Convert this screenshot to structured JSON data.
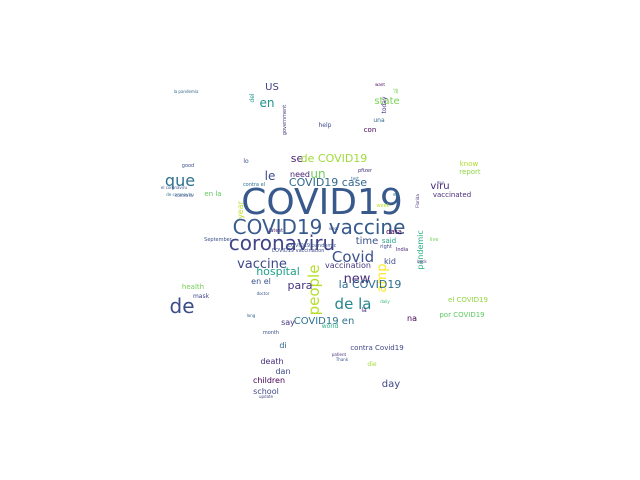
{
  "words": [
    {
      "text": "COVID19",
      "color": "#38598c"
    },
    {
      "text": "COVID19 vaccine",
      "color": "#375b8d"
    },
    {
      "text": "coronaviru",
      "color": "#414487"
    },
    {
      "text": "de",
      "color": "#3d4d8a"
    },
    {
      "text": "que",
      "color": "#2c728e"
    },
    {
      "text": "Covid",
      "color": "#3b528b"
    },
    {
      "text": "de la",
      "color": "#25858e"
    },
    {
      "text": "people",
      "color": "#b5de2b"
    },
    {
      "text": "amp",
      "color": "#fde725"
    },
    {
      "text": "new",
      "color": "#472d7b"
    },
    {
      "text": "vaccine",
      "color": "#3e4989"
    },
    {
      "text": "hospital",
      "color": "#1fa187"
    },
    {
      "text": "para",
      "color": "#46327e"
    },
    {
      "text": "la COVID19",
      "color": "#306a8e"
    },
    {
      "text": "COVID19 case",
      "color": "#31688e"
    },
    {
      "text": "se",
      "color": "#482576"
    },
    {
      "text": "de COVID19",
      "color": "#9fda3a"
    },
    {
      "text": "le",
      "color": "#3e4a89"
    },
    {
      "text": "un",
      "color": "#6ccd5a"
    },
    {
      "text": "en",
      "color": "#21918c"
    },
    {
      "text": "US",
      "color": "#414487"
    },
    {
      "text": "viru",
      "color": "#482878"
    },
    {
      "text": "time",
      "color": "#3b528b"
    },
    {
      "text": "state",
      "color": "#7ad151"
    },
    {
      "text": "COVID19 en",
      "color": "#2c728e"
    },
    {
      "text": "day",
      "color": "#3f4788"
    },
    {
      "text": "need",
      "color": "#482173"
    },
    {
      "text": "vaccination",
      "color": "#453781"
    },
    {
      "text": "en el",
      "color": "#3b528b"
    },
    {
      "text": "say",
      "color": "#46327e"
    },
    {
      "text": "death",
      "color": "#472c7a"
    },
    {
      "text": "children",
      "color": "#440154"
    },
    {
      "text": "school",
      "color": "#404688"
    },
    {
      "text": "dan",
      "color": "#3e4989"
    },
    {
      "text": "di",
      "color": "#31688e"
    },
    {
      "text": "kid",
      "color": "#3e4a89"
    },
    {
      "text": "na",
      "color": "#440154"
    },
    {
      "text": "pandemic",
      "color": "#27ad81"
    },
    {
      "text": "data",
      "color": "#440154"
    },
    {
      "text": "said",
      "color": "#20a386"
    },
    {
      "text": "contra Covid19",
      "color": "#3f4788"
    },
    {
      "text": "year",
      "color": "#b8de29"
    },
    {
      "text": "en la",
      "color": "#5ec962"
    },
    {
      "text": "vaccinated",
      "color": "#472d7b"
    },
    {
      "text": "report",
      "color": "#8fd744"
    },
    {
      "text": "know",
      "color": "#addc30"
    },
    {
      "text": "el COVID19",
      "color": "#90d743"
    },
    {
      "text": "por COVID19",
      "color": "#5ec962"
    },
    {
      "text": "health",
      "color": "#73d056"
    },
    {
      "text": "mask",
      "color": "#3f4788"
    },
    {
      "text": "world",
      "color": "#27ad81"
    },
    {
      "text": "la",
      "color": "#472d7b"
    },
    {
      "text": "help",
      "color": "#3e4a89"
    },
    {
      "text": "con",
      "color": "#440154"
    },
    {
      "text": "una",
      "color": "#31688e"
    },
    {
      "text": "today",
      "color": "#472c7a"
    },
    {
      "text": "lo",
      "color": "#3b528b"
    },
    {
      "text": "del",
      "color": "#21918c"
    },
    {
      "text": "al",
      "color": "#7ad151"
    },
    {
      "text": "want",
      "color": "#440154"
    },
    {
      "text": "government",
      "color": "#46327e"
    },
    {
      "text": "good",
      "color": "#3b528b"
    },
    {
      "text": "es",
      "color": "#2c728e"
    },
    {
      "text": "India",
      "color": "#482878"
    },
    {
      "text": "live",
      "color": "#7ad151"
    },
    {
      "text": "September",
      "color": "#3b528b"
    },
    {
      "text": "latest",
      "color": "#481f70"
    },
    {
      "text": "COVID19 pandemic",
      "color": "#3b528b"
    },
    {
      "text": "COVID19 vaccination",
      "color": "#3e4989"
    },
    {
      "text": "contra el",
      "color": "#2c728e"
    },
    {
      "text": "month",
      "color": "#3b528b"
    },
    {
      "text": "week",
      "color": "#bddf26"
    },
    {
      "text": "pfizer",
      "color": "#46327e"
    },
    {
      "text": "right",
      "color": "#3f4788"
    },
    {
      "text": "die",
      "color": "#a5db36"
    },
    {
      "text": "daily",
      "color": "#35b779"
    },
    {
      "text": "Florida",
      "color": "#472d7b"
    },
    {
      "text": "test",
      "color": "#31688e"
    },
    {
      "text": "de coronaviru",
      "color": "#2c728e"
    },
    {
      "text": "la pandemia",
      "color": "#31688e"
    },
    {
      "text": "el coronaviru",
      "color": "#3b528b"
    },
    {
      "text": "contra la",
      "color": "#3e4989"
    },
    {
      "text": "doctor",
      "color": "#3b528b"
    },
    {
      "text": "patient",
      "color": "#472d7b"
    },
    {
      "text": "Thank",
      "color": "#3b528b"
    },
    {
      "text": "update",
      "color": "#404688"
    },
    {
      "text": "sur",
      "color": "#3f4788"
    },
    {
      "text": "wear",
      "color": "#3e4989"
    },
    {
      "text": "long",
      "color": "#31688e"
    },
    {
      "text": "back",
      "color": "#46327e"
    }
  ]
}
